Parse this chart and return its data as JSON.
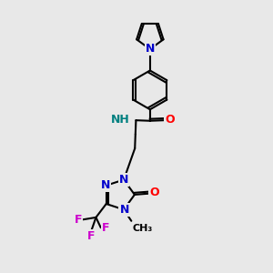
{
  "bg_color": "#e8e8e8",
  "bond_color": "#000000",
  "bond_width": 1.5,
  "atom_colors": {
    "N": "#0000cc",
    "O": "#ff0000",
    "F": "#cc00cc",
    "NH": "#008080",
    "C": "#000000"
  }
}
